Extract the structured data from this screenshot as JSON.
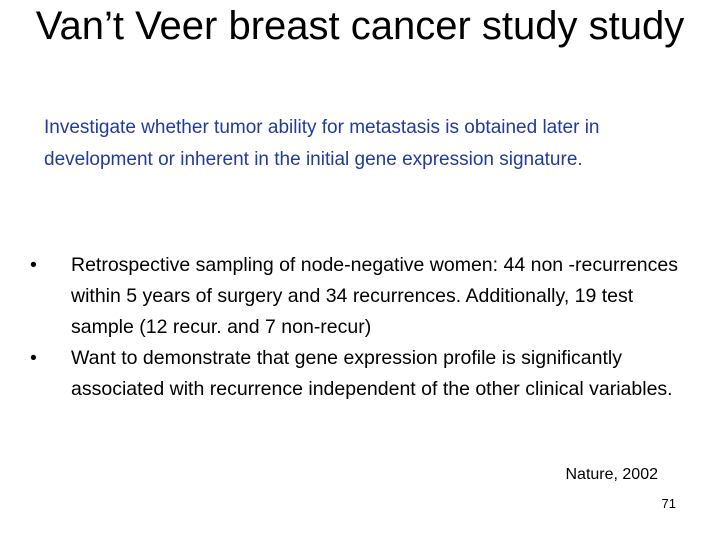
{
  "slide": {
    "title": "Van’t Veer breast cancer study study",
    "intro": "Investigate whether tumor ability for metastasis is obtained later in development or inherent in the initial gene expression signature.",
    "bullet_symbol": "•",
    "bullets": [
      "Retrospective sampling of node-negative women: 44 non -recurrences within 5 years of surgery and 34 recurrences. Additionally, 19 test sample (12 recur. and 7 non-recur)",
      "Want to demonstrate that gene expression profile is significantly associated with recurrence independent of the other clinical variables."
    ],
    "citation": "Nature, 2002",
    "page_number": "71"
  },
  "colors": {
    "intro_text": "#1f3b9c",
    "body_text": "#000000",
    "background": "#ffffff"
  }
}
